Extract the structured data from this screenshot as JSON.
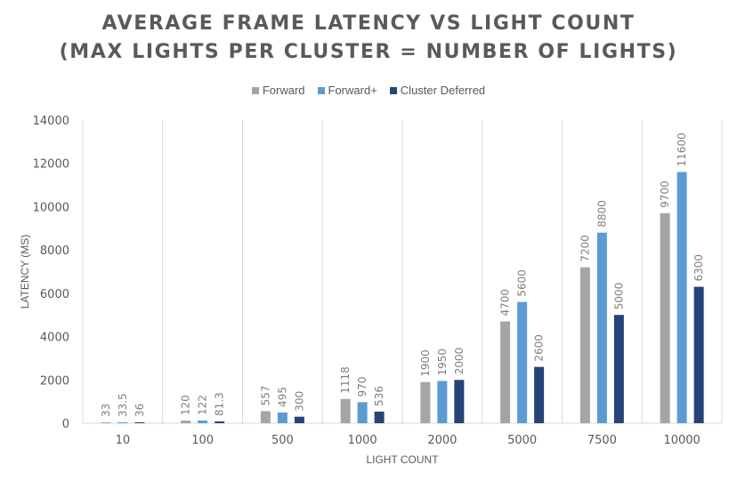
{
  "chart_data": {
    "type": "bar",
    "title_lines": [
      "AVERAGE FRAME LATENCY VS LIGHT COUNT",
      "(MAX LIGHTS PER CLUSTER = NUMBER OF LIGHTS)"
    ],
    "xlabel": "LIGHT COUNT",
    "ylabel": "LATENCY (MS)",
    "ylim": [
      0,
      14000
    ],
    "yticks": [
      "0",
      "2000",
      "4000",
      "6000",
      "8000",
      "10000",
      "12000",
      "14000"
    ],
    "yticks_values": [
      0,
      2000,
      4000,
      6000,
      8000,
      10000,
      12000,
      14000
    ],
    "categories": [
      "10",
      "100",
      "500",
      "1000",
      "2000",
      "5000",
      "7500",
      "10000"
    ],
    "legend_position": "top",
    "grid": "vertical",
    "series": [
      {
        "name": "Forward",
        "color": "#a5a5a5",
        "values": [
          33,
          120,
          557,
          1118,
          1900,
          4700,
          7200,
          9700
        ],
        "labels": [
          "33",
          "120",
          "557",
          "1118",
          "1900",
          "4700",
          "7200",
          "9700"
        ]
      },
      {
        "name": "Forward+",
        "color": "#5b9bd5",
        "values": [
          33.5,
          122,
          495,
          970,
          1950,
          5600,
          8800,
          11600
        ],
        "labels": [
          "33.5",
          "122",
          "495",
          "970",
          "1950",
          "5600",
          "8800",
          "11600"
        ]
      },
      {
        "name": "Cluster Deferred",
        "color": "#264478",
        "values": [
          36,
          81.3,
          300,
          536,
          2000,
          2600,
          5000,
          6300
        ],
        "labels": [
          "36",
          "81.3",
          "300",
          "536",
          "2000",
          "2600",
          "5000",
          "6300"
        ]
      }
    ]
  }
}
